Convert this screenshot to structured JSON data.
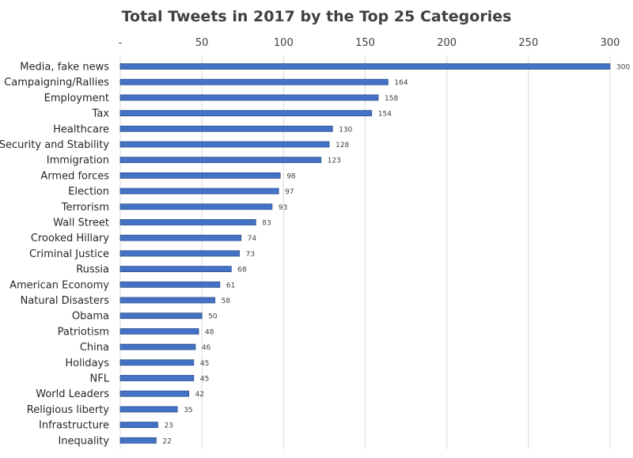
{
  "chart_data": {
    "type": "bar",
    "orientation": "horizontal",
    "title": "Total Tweets in 2017 by the Top 25 Categories",
    "categories": [
      "Media, fake news",
      "Campaigning/Rallies",
      "Employment",
      "Tax",
      "Healthcare",
      "Security and Stability",
      "Immigration",
      "Armed forces",
      "Election",
      "Terrorism",
      "Wall Street",
      "Crooked Hillary",
      "Criminal Justice",
      "Russia",
      "American Economy",
      "Natural Disasters",
      "Obama",
      "Patriotism",
      "China",
      "Holidays",
      "NFL",
      "World Leaders",
      "Religious liberty",
      "Infrastructure",
      "Inequality"
    ],
    "values": [
      300,
      164,
      158,
      154,
      130,
      128,
      123,
      98,
      97,
      93,
      83,
      74,
      73,
      68,
      61,
      58,
      50,
      48,
      46,
      45,
      45,
      42,
      35,
      23,
      22
    ],
    "xlim": [
      0,
      300
    ],
    "x_ticks": [
      0,
      50,
      100,
      150,
      200,
      250,
      300
    ],
    "x_tick_labels": [
      "-",
      "50",
      "100",
      "150",
      "200",
      "250",
      "300"
    ],
    "x_axis_position": "top",
    "grid": "vertical",
    "legend": "none",
    "bar_color": "#4472c4",
    "bar_border_color": "#2f528f",
    "xlabel": "",
    "ylabel": ""
  }
}
